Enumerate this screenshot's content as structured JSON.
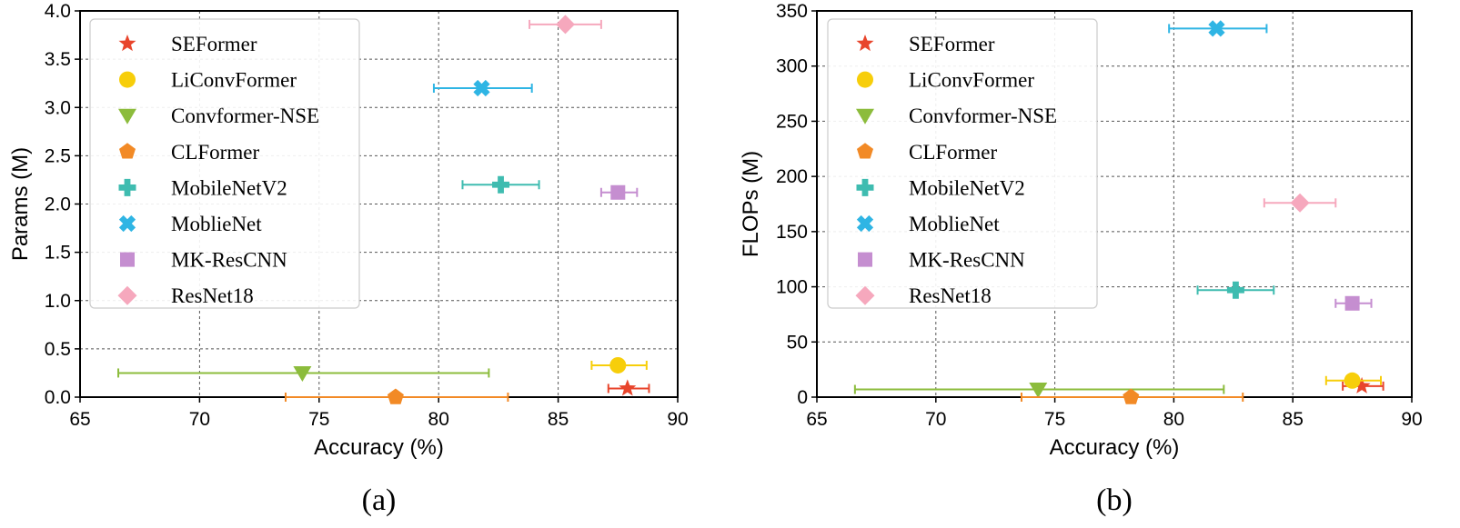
{
  "chart_data": [
    {
      "type": "scatter",
      "caption": "(a)",
      "xlabel": "Accuracy (%)",
      "ylabel": "Params (M)",
      "xlim": [
        65,
        90
      ],
      "ylim": [
        0,
        4.0
      ],
      "xticks": [
        "65",
        "70",
        "75",
        "80",
        "85",
        "90"
      ],
      "yticks": [
        "0.0",
        "0.5",
        "1.0",
        "1.5",
        "2.0",
        "2.5",
        "3.0",
        "3.5",
        "4.0"
      ],
      "grid": true,
      "legend_position": "top-left",
      "series": [
        {
          "name": "SEFormer",
          "marker": "star",
          "color": "#e8452c",
          "x": 87.9,
          "y": 0.09,
          "xerr": [
            87.1,
            88.8
          ]
        },
        {
          "name": "LiConvFormer",
          "marker": "circle",
          "color": "#f7ce0a",
          "x": 87.5,
          "y": 0.33,
          "xerr": [
            86.4,
            88.7
          ]
        },
        {
          "name": "Convformer-NSE",
          "marker": "triangle-down",
          "color": "#8cbc3c",
          "x": 74.3,
          "y": 0.25,
          "xerr": [
            66.6,
            82.1
          ]
        },
        {
          "name": "CLFormer",
          "marker": "pentagon",
          "color": "#f28a26",
          "x": 78.2,
          "y": 0.0,
          "xerr": [
            73.6,
            82.9
          ]
        },
        {
          "name": "MobileNetV2",
          "marker": "plus",
          "color": "#3fbcb0",
          "x": 82.6,
          "y": 2.2,
          "xerr": [
            81.0,
            84.2
          ]
        },
        {
          "name": "MoblieNet",
          "marker": "x",
          "color": "#2fb5e4",
          "x": 81.8,
          "y": 3.2,
          "xerr": [
            79.8,
            83.9
          ]
        },
        {
          "name": "MK-ResCNN",
          "marker": "square",
          "color": "#c58ed0",
          "x": 87.5,
          "y": 2.12,
          "xerr": [
            86.8,
            88.3
          ]
        },
        {
          "name": "ResNet18",
          "marker": "diamond",
          "color": "#f6a8bd",
          "x": 85.3,
          "y": 3.86,
          "xerr": [
            83.8,
            86.8
          ]
        }
      ]
    },
    {
      "type": "scatter",
      "caption": "(b)",
      "xlabel": "Accuracy (%)",
      "ylabel": "FLOPs (M)",
      "xlim": [
        65,
        90
      ],
      "ylim": [
        0,
        350
      ],
      "xticks": [
        "65",
        "70",
        "75",
        "80",
        "85",
        "90"
      ],
      "yticks": [
        "0",
        "50",
        "100",
        "150",
        "200",
        "250",
        "300",
        "350"
      ],
      "grid": true,
      "legend_position": "top-left",
      "series": [
        {
          "name": "SEFormer",
          "marker": "star",
          "color": "#e8452c",
          "x": 87.9,
          "y": 10,
          "xerr": [
            87.1,
            88.8
          ]
        },
        {
          "name": "LiConvFormer",
          "marker": "circle",
          "color": "#f7ce0a",
          "x": 87.5,
          "y": 15,
          "xerr": [
            86.4,
            88.7
          ]
        },
        {
          "name": "Convformer-NSE",
          "marker": "triangle-down",
          "color": "#8cbc3c",
          "x": 74.3,
          "y": 7,
          "xerr": [
            66.6,
            82.1
          ]
        },
        {
          "name": "CLFormer",
          "marker": "pentagon",
          "color": "#f28a26",
          "x": 78.2,
          "y": 0,
          "xerr": [
            73.6,
            82.9
          ]
        },
        {
          "name": "MobileNetV2",
          "marker": "plus",
          "color": "#3fbcb0",
          "x": 82.6,
          "y": 97,
          "xerr": [
            81.0,
            84.2
          ]
        },
        {
          "name": "MoblieNet",
          "marker": "x",
          "color": "#2fb5e4",
          "x": 81.8,
          "y": 334,
          "xerr": [
            79.8,
            83.9
          ]
        },
        {
          "name": "MK-ResCNN",
          "marker": "square",
          "color": "#c58ed0",
          "x": 87.5,
          "y": 85,
          "xerr": [
            86.8,
            88.3
          ]
        },
        {
          "name": "ResNet18",
          "marker": "diamond",
          "color": "#f6a8bd",
          "x": 85.3,
          "y": 176,
          "xerr": [
            83.8,
            86.8
          ]
        }
      ]
    }
  ]
}
